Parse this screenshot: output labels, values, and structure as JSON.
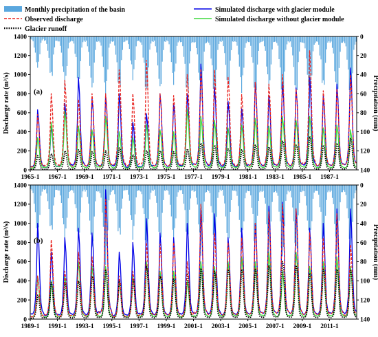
{
  "legend": {
    "items": [
      {
        "label": "Monthly precipitation of the basin",
        "color": "#5aa7de",
        "style": "bar"
      },
      {
        "label": "Simulated discharge with glacier module",
        "color": "#0000e6",
        "style": "solid"
      },
      {
        "label": "Observed discharge",
        "color": "#e8231f",
        "style": "dashed"
      },
      {
        "label": "Simulated discharge without glacier module",
        "color": "#3fd93f",
        "style": "solid"
      },
      {
        "label": "Glacier runoff",
        "color": "#000000",
        "style": "dotted"
      }
    ]
  },
  "chart_data": [
    {
      "type": "line",
      "panel_label": "(a)",
      "ylabel": "Discharge rate (m³/s)",
      "y2label": "Precipitation (mm)",
      "ylim": [
        0,
        1400
      ],
      "y2lim": [
        140,
        0
      ],
      "yticks": [
        0,
        200,
        400,
        600,
        800,
        1000,
        1200,
        1400
      ],
      "y2ticks": [
        0,
        20,
        40,
        60,
        80,
        100,
        120,
        140
      ],
      "xrange": [
        "1965-1",
        "1988-12"
      ],
      "xticks": [
        "1965-1",
        "1967-1",
        "1969-1",
        "1971-1",
        "1973-1",
        "1975-1",
        "1977-1",
        "1979-1",
        "1981-1",
        "1983-1",
        "1985-1",
        "1987-1"
      ],
      "years": [
        1965,
        1966,
        1967,
        1968,
        1969,
        1970,
        1971,
        1972,
        1973,
        1974,
        1975,
        1976,
        1977,
        1978,
        1979,
        1980,
        1981,
        1982,
        1983,
        1984,
        1985,
        1986,
        1987,
        1988
      ],
      "series": [
        {
          "name": "Simulated discharge with glacier module",
          "annual_peak": [
            630,
            460,
            700,
            970,
            750,
            780,
            800,
            500,
            590,
            800,
            700,
            800,
            1110,
            870,
            720,
            640,
            920,
            780,
            920,
            860,
            970,
            780,
            900,
            1070
          ]
        },
        {
          "name": "Observed discharge",
          "annual_peak": [
            580,
            800,
            940,
            740,
            800,
            800,
            1050,
            800,
            1150,
            800,
            780,
            1000,
            1060,
            1050,
            980,
            790,
            920,
            900,
            1000,
            850,
            1250,
            830,
            850,
            1000
          ]
        },
        {
          "name": "Simulated discharge without glacier module",
          "annual_peak": [
            340,
            500,
            620,
            460,
            420,
            560,
            400,
            340,
            480,
            420,
            400,
            640,
            560,
            520,
            440,
            470,
            540,
            460,
            560,
            520,
            560,
            440,
            470,
            420
          ]
        },
        {
          "name": "Glacier runoff",
          "annual_peak": [
            150,
            170,
            200,
            210,
            190,
            200,
            230,
            160,
            200,
            200,
            190,
            220,
            280,
            260,
            220,
            210,
            260,
            240,
            300,
            260,
            350,
            260,
            280,
            330
          ]
        }
      ],
      "precipitation_annual_peak": [
        30,
        40,
        50,
        45,
        50,
        55,
        50,
        40,
        55,
        50,
        45,
        55,
        60,
        58,
        50,
        52,
        55,
        50,
        60,
        55,
        65,
        50,
        58,
        62
      ]
    },
    {
      "type": "line",
      "panel_label": "(b)",
      "ylabel": "Discharge rate (m³/s)",
      "y2label": "Precipitation (mm)",
      "ylim": [
        0,
        1400
      ],
      "y2lim": [
        140,
        0
      ],
      "yticks": [
        0,
        200,
        400,
        600,
        800,
        1000,
        1200,
        1400
      ],
      "y2ticks": [
        0,
        20,
        40,
        60,
        80,
        100,
        120,
        140
      ],
      "xrange": [
        "1989-1",
        "2012-12"
      ],
      "xticks": [
        "1989-1",
        "1991-1",
        "1993-1",
        "1995-1",
        "1997-1",
        "1999-1",
        "2001-1",
        "2003-1",
        "2005-1",
        "2007-1",
        "2009-1",
        "2011-1"
      ],
      "years": [
        1989,
        1990,
        1991,
        1992,
        1993,
        1994,
        1995,
        1996,
        1997,
        1998,
        1999,
        2000,
        2001,
        2002,
        2003,
        2004,
        2005,
        2006,
        2007,
        2008,
        2009,
        2010,
        2011,
        2012
      ],
      "series": [
        {
          "name": "Simulated discharge with glacier module",
          "annual_peak": [
            1000,
            700,
            850,
            950,
            900,
            1350,
            700,
            800,
            1050,
            900,
            850,
            1000,
            1150,
            1100,
            850,
            950,
            1000,
            1180,
            1220,
            1150,
            950,
            1000,
            1150,
            1150
          ]
        },
        {
          "name": "Observed discharge",
          "annual_peak": [
            450,
            830,
            500,
            700,
            650,
            1250,
            450,
            500,
            800,
            780,
            800,
            600,
            1200,
            900,
            800,
            850,
            1000,
            1120,
            1200,
            1150,
            900,
            850,
            1100,
            780
          ]
        },
        {
          "name": "Simulated discharge without glacier module",
          "annual_peak": [
            450,
            400,
            450,
            600,
            550,
            550,
            400,
            450,
            600,
            500,
            500,
            400,
            600,
            550,
            600,
            650,
            600,
            700,
            500,
            700,
            550,
            600,
            650,
            550
          ]
        },
        {
          "name": "Glacier runoff",
          "annual_peak": [
            250,
            380,
            380,
            400,
            450,
            520,
            400,
            420,
            550,
            450,
            420,
            480,
            530,
            500,
            520,
            520,
            520,
            560,
            600,
            560,
            480,
            520,
            520,
            520
          ]
        }
      ],
      "precipitation_annual_peak": [
        50,
        45,
        55,
        50,
        60,
        75,
        50,
        50,
        60,
        55,
        55,
        50,
        65,
        55,
        55,
        60,
        60,
        65,
        70,
        65,
        60,
        58,
        65,
        62
      ]
    }
  ]
}
